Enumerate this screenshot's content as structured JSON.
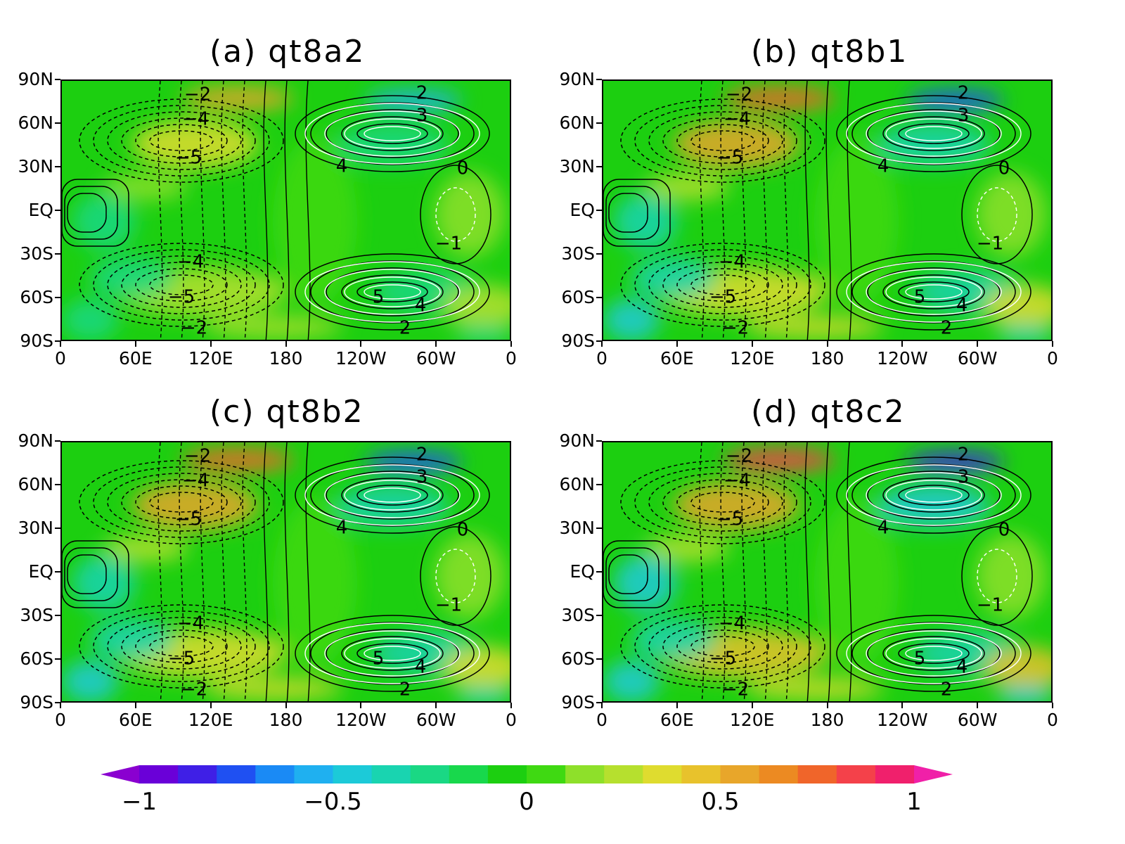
{
  "panels": [
    {
      "title": "(a) qt8a2",
      "contour_labels": [
        "−2",
        "2",
        "3",
        "−4",
        "−5",
        "4",
        "0",
        "−1",
        "−4",
        "−5",
        "5",
        "4",
        "−2",
        "2"
      ]
    },
    {
      "title": "(b) qt8b1",
      "contour_labels": [
        "−2",
        "2",
        "3",
        "−4",
        "−5",
        "4",
        "0",
        "−1",
        "−4",
        "−5",
        "5",
        "4",
        "−2",
        "2"
      ]
    },
    {
      "title": "(c) qt8b2",
      "contour_labels": [
        "−2",
        "2",
        "3",
        "−4",
        "−5",
        "4",
        "0",
        "−1",
        "−4",
        "−5",
        "5",
        "4",
        "−2",
        "2"
      ]
    },
    {
      "title": "(d) qt8c2",
      "contour_labels": [
        "−2",
        "2",
        "3",
        "−4",
        "−5",
        "4",
        "0",
        "−1",
        "−4",
        "−5",
        "5",
        "4",
        "−2",
        "2"
      ]
    }
  ],
  "lat_ticks": [
    "90N",
    "60N",
    "30N",
    "EQ",
    "30S",
    "60S",
    "90S"
  ],
  "lon_ticks": [
    "0",
    "60E",
    "120E",
    "180",
    "120W",
    "60W",
    "0"
  ],
  "colorbar": {
    "tick_labels": [
      "−1",
      "−0.5",
      "0",
      "0.5",
      "1"
    ],
    "tick_values": [
      -1,
      -0.5,
      0,
      0.5,
      1
    ],
    "range": [
      -1,
      1
    ],
    "extend": "both",
    "colors": [
      "#8a00d0",
      "#6a00d8",
      "#3f1fe6",
      "#1f50f2",
      "#1a8af5",
      "#1fb0f0",
      "#1ccad8",
      "#19d4b0",
      "#1ad884",
      "#18d84c",
      "#1ccf10",
      "#3fd912",
      "#8ee02a",
      "#b6e02e",
      "#dfdc2f",
      "#e8c22c",
      "#e8a62a",
      "#ec8a22",
      "#f0652a",
      "#f4414a",
      "#f0206c",
      "#f020a8"
    ]
  },
  "chart_data": {
    "type": "heatmap",
    "x_range": [
      "0",
      "0"
    ],
    "y_range": [
      "90S",
      "90N"
    ],
    "contour_levels_shown": [
      -5,
      -4,
      -2,
      -1,
      0,
      2,
      3,
      4,
      5
    ],
    "fields": [
      {
        "panel": "(a) qt8a2"
      },
      {
        "panel": "(b) qt8b1"
      },
      {
        "panel": "(c) qt8b2"
      },
      {
        "panel": "(d) qt8c2"
      }
    ]
  }
}
